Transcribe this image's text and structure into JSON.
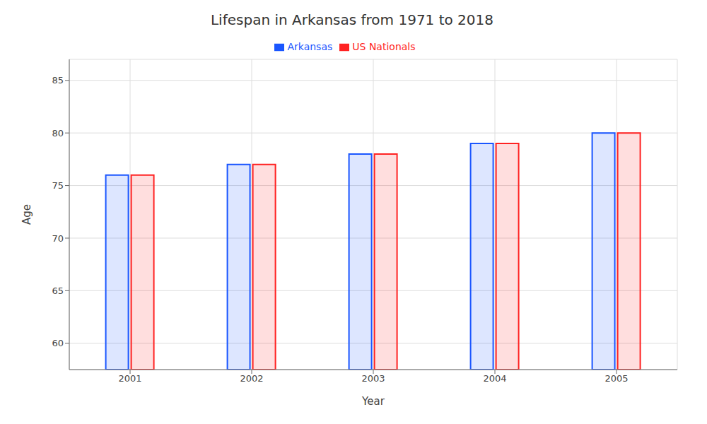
{
  "chart_data": {
    "type": "bar",
    "title": "Lifespan in Arkansas from 1971 to 2018",
    "x_label": "Year",
    "y_label": "Age",
    "categories": [
      "2001",
      "2002",
      "2003",
      "2004",
      "2005"
    ],
    "series": [
      {
        "name": "Arkansas",
        "color": "#1a56ff",
        "values": [
          76,
          77,
          78,
          79,
          80
        ]
      },
      {
        "name": "US Nationals",
        "color": "#ff2222",
        "values": [
          76,
          77,
          78,
          79,
          80
        ]
      }
    ],
    "ylim": [
      57.5,
      87
    ],
    "yticks": [
      60,
      65,
      70,
      75,
      80,
      85
    ],
    "grid": true,
    "legend": "top"
  }
}
